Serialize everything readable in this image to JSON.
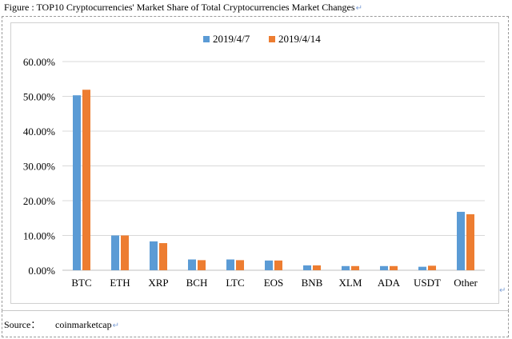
{
  "figure": {
    "title": "Figure : TOP10 Cryptocurrencies' Market Share of Total Cryptocurrencies Market Changes",
    "source_label": "Source：",
    "source_value": "coinmarketcap"
  },
  "colors": {
    "series1": "#5b9bd5",
    "series2": "#ed7d31",
    "grid": "#d9d9d9",
    "axis": "#bfbfbf"
  },
  "chart_data": {
    "type": "bar",
    "categories": [
      "BTC",
      "ETH",
      "XRP",
      "BCH",
      "LTC",
      "EOS",
      "BNB",
      "XLM",
      "ADA",
      "USDT",
      "Other"
    ],
    "series": [
      {
        "name": "2019/4/7",
        "values": [
          50.3,
          10.0,
          8.3,
          3.1,
          3.1,
          2.8,
          1.4,
          1.2,
          1.2,
          1.0,
          16.8
        ]
      },
      {
        "name": "2019/4/14",
        "values": [
          51.9,
          10.0,
          7.8,
          2.9,
          2.9,
          2.8,
          1.4,
          1.2,
          1.2,
          1.3,
          16.1
        ]
      }
    ],
    "yticks": [
      "0.00%",
      "10.00%",
      "20.00%",
      "30.00%",
      "40.00%",
      "50.00%",
      "60.00%"
    ],
    "ylim": [
      0,
      60
    ],
    "title": "",
    "xlabel": "",
    "ylabel": "",
    "grid": true,
    "legend": "top-center"
  }
}
